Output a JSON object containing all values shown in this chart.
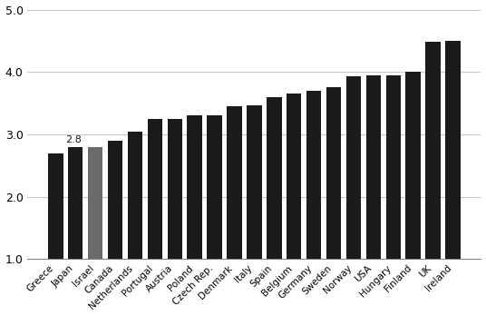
{
  "categories": [
    "Greece",
    "Japan",
    "Israel",
    "Canada",
    "Netherlands",
    "Portugal",
    "Austria",
    "Poland",
    "Czech Rep.",
    "Denmark",
    "Italy",
    "Spain",
    "Belgium",
    "Germany",
    "Sweden",
    "Norway",
    "USA",
    "Hungary",
    "Finland",
    "UK",
    "Ireland"
  ],
  "values": [
    2.7,
    2.8,
    2.8,
    2.9,
    3.05,
    3.25,
    3.25,
    3.3,
    3.3,
    3.45,
    3.47,
    3.6,
    3.65,
    3.7,
    3.75,
    3.93,
    3.95,
    3.95,
    4.0,
    4.48,
    4.5
  ],
  "bar_colors": [
    "#1a1a1a",
    "#1a1a1a",
    "#6b6b6b",
    "#1a1a1a",
    "#1a1a1a",
    "#1a1a1a",
    "#1a1a1a",
    "#1a1a1a",
    "#1a1a1a",
    "#1a1a1a",
    "#1a1a1a",
    "#1a1a1a",
    "#1a1a1a",
    "#1a1a1a",
    "#1a1a1a",
    "#1a1a1a",
    "#1a1a1a",
    "#1a1a1a",
    "#1a1a1a",
    "#1a1a1a",
    "#1a1a1a"
  ],
  "annotation_text": "2.8",
  "annotation_index": 1,
  "bar_bottom": 1.0,
  "ylim": [
    1.0,
    5.0
  ],
  "yticks": [
    1.0,
    2.0,
    3.0,
    4.0,
    5.0
  ],
  "background_color": "#ffffff",
  "grid_color": "#c8c8c8",
  "bar_width": 0.75
}
